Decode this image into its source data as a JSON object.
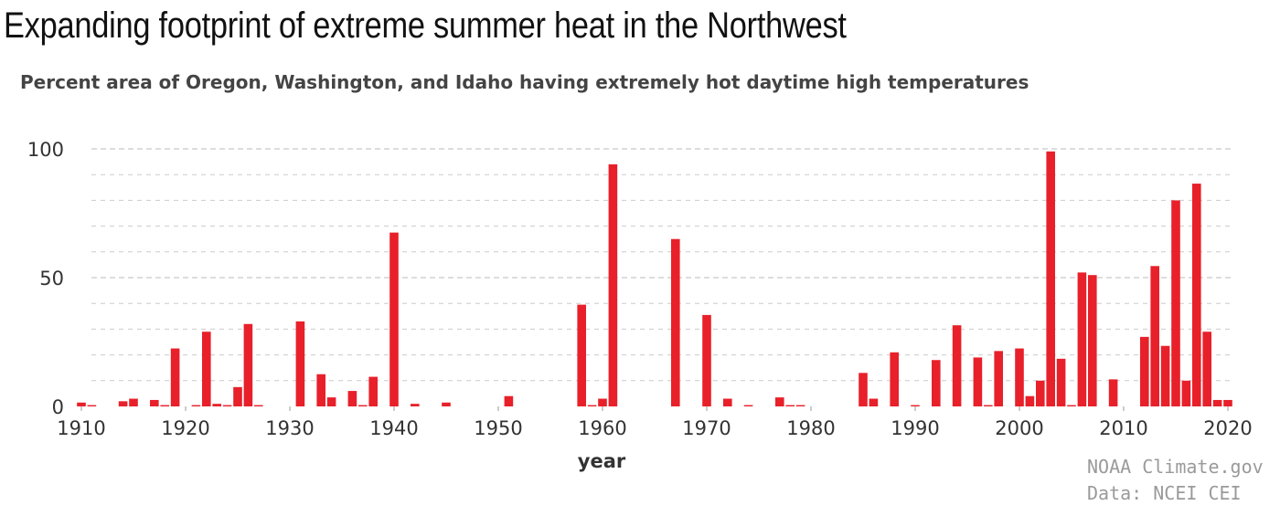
{
  "title": "Expanding footprint of extreme summer heat in the Northwest",
  "subtitle": "Percent area of Oregon, Washington, and Idaho having extremely hot daytime high temperatures",
  "credits": [
    "NOAA Climate.gov",
    "Data: NCEI CEI"
  ],
  "colors": {
    "bar": "#e8202a",
    "grid": "#cccccc",
    "axis_text": "#333333"
  },
  "chart_data": {
    "type": "bar",
    "title": "",
    "xlabel": "year",
    "ylabel": "",
    "xlim": [
      1910,
      2020
    ],
    "ylim": [
      0,
      100
    ],
    "x_ticks": [
      1910,
      1920,
      1930,
      1940,
      1950,
      1960,
      1970,
      1980,
      1990,
      2000,
      2010,
      2020
    ],
    "y_ticks": [
      0,
      50,
      100
    ],
    "grid": "horizontal dashed",
    "x": [
      1910,
      1911,
      1912,
      1913,
      1914,
      1915,
      1916,
      1917,
      1918,
      1919,
      1920,
      1921,
      1922,
      1923,
      1924,
      1925,
      1926,
      1927,
      1928,
      1929,
      1930,
      1931,
      1932,
      1933,
      1934,
      1935,
      1936,
      1937,
      1938,
      1939,
      1940,
      1941,
      1942,
      1943,
      1944,
      1945,
      1946,
      1947,
      1948,
      1949,
      1950,
      1951,
      1952,
      1953,
      1954,
      1955,
      1956,
      1957,
      1958,
      1959,
      1960,
      1961,
      1962,
      1963,
      1964,
      1965,
      1966,
      1967,
      1968,
      1969,
      1970,
      1971,
      1972,
      1973,
      1974,
      1975,
      1976,
      1977,
      1978,
      1979,
      1980,
      1981,
      1982,
      1983,
      1984,
      1985,
      1986,
      1987,
      1988,
      1989,
      1990,
      1991,
      1992,
      1993,
      1994,
      1995,
      1996,
      1997,
      1998,
      1999,
      2000,
      2001,
      2002,
      2003,
      2004,
      2005,
      2006,
      2007,
      2008,
      2009,
      2010,
      2011,
      2012,
      2013,
      2014,
      2015,
      2016,
      2017,
      2018,
      2019,
      2020
    ],
    "values": [
      1.5,
      0.5,
      0,
      0,
      2,
      3,
      0,
      2.5,
      0.5,
      22.5,
      0,
      0.5,
      29,
      1,
      0.5,
      7.5,
      32,
      0.5,
      0,
      0,
      0,
      33,
      0,
      12.5,
      3.5,
      0,
      6,
      0.5,
      11.5,
      0,
      67.5,
      0,
      1,
      0,
      0,
      1.5,
      0,
      0,
      0,
      0,
      0,
      4,
      0,
      0,
      0,
      0,
      0,
      0,
      39.5,
      0.5,
      3,
      94,
      0,
      0,
      0,
      0,
      0,
      65,
      0,
      0,
      35.5,
      0,
      3,
      0,
      0.5,
      0,
      0,
      3.5,
      0.5,
      0.5,
      0,
      0,
      0,
      0,
      0,
      13,
      3,
      0,
      21,
      0,
      0.5,
      0,
      18,
      0,
      31.5,
      0,
      19,
      0.5,
      21.5,
      0,
      22.5,
      4,
      10,
      99,
      18.5,
      0.5,
      52,
      51,
      0,
      10.5,
      0,
      0,
      27,
      54.5,
      23.5,
      80,
      10,
      86.5,
      29,
      2.5,
      2.5
    ]
  }
}
